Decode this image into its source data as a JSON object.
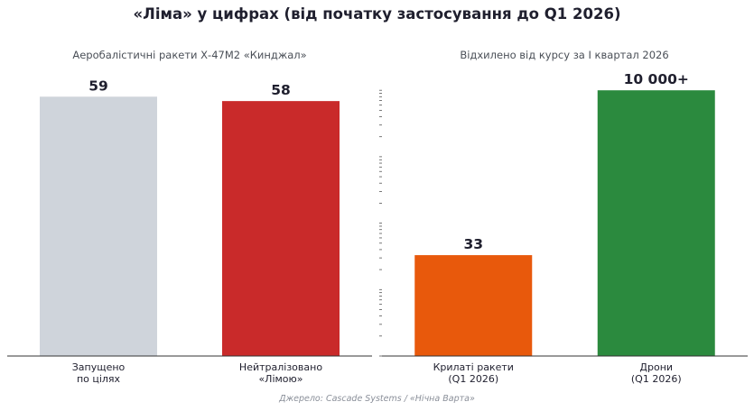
{
  "title": "«Ліма» у цифрах (від початку застосування до Q1 2026)",
  "source": "Джерело: Cascade Systems / «Нічна Варта»",
  "chart_data": [
    {
      "type": "bar",
      "title": "Аеробалістичні ракети Х-47М2 «Кинджал»",
      "categories": [
        "Запущено\nпо цілях",
        "Нейтралізовано\n«Лімою»"
      ],
      "values": [
        59,
        58
      ],
      "value_labels": [
        "59",
        "58"
      ],
      "colors": [
        "#cfd4db",
        "#c92a2a"
      ],
      "ylim": [
        0,
        65
      ],
      "yscale": "linear",
      "grid": false
    },
    {
      "type": "bar",
      "title": "Відхилено від курсу за І квартал 2026",
      "categories": [
        "Крилаті ракети\n(Q1 2026)",
        "Дрони\n(Q1 2026)"
      ],
      "values": [
        33,
        10000
      ],
      "value_labels": [
        "33",
        "10 000+"
      ],
      "colors": [
        "#e8590c",
        "#2b8a3e"
      ],
      "ylim": [
        1,
        20000
      ],
      "yscale": "log",
      "grid": false
    }
  ]
}
